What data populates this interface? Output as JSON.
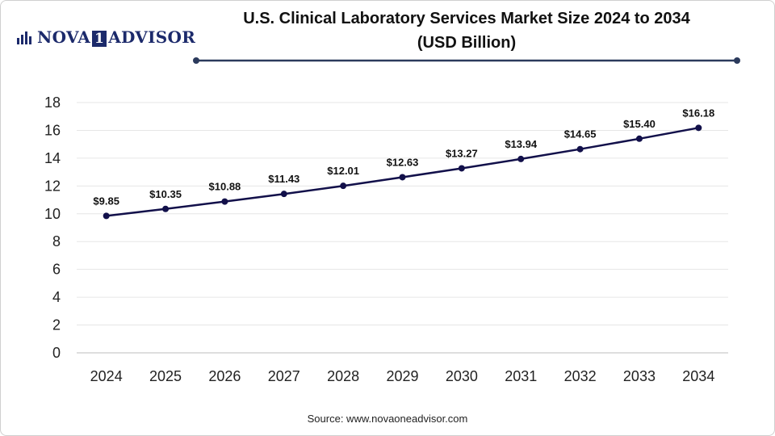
{
  "brand": {
    "name_left": "NOVA",
    "name_box": "1",
    "name_right": "ADVISOR"
  },
  "title_line1": "U.S. Clinical Laboratory Services Market Size 2024 to 2034",
  "title_line2": "(USD Billion)",
  "source": "Source: www.novaoneadvisor.com",
  "colors": {
    "line": "#12104a",
    "accent": "#2b3a5c",
    "grid": "#e6e6e6"
  },
  "chart_data": {
    "type": "line",
    "title": "U.S. Clinical Laboratory Services Market Size 2024 to 2034 (USD Billion)",
    "xlabel": "",
    "ylabel": "",
    "categories": [
      "2024",
      "2025",
      "2026",
      "2027",
      "2028",
      "2029",
      "2030",
      "2031",
      "2032",
      "2033",
      "2034"
    ],
    "values": [
      9.85,
      10.35,
      10.88,
      11.43,
      12.01,
      12.63,
      13.27,
      13.94,
      14.65,
      15.4,
      16.18
    ],
    "data_labels": [
      "$9.85",
      "$10.35",
      "$10.88",
      "$11.43",
      "$12.01",
      "$12.63",
      "$13.27",
      "$13.94",
      "$14.65",
      "$15.40",
      "$16.18"
    ],
    "ylim": [
      0,
      18
    ],
    "yticks": [
      0,
      2,
      4,
      6,
      8,
      10,
      12,
      14,
      16,
      18
    ],
    "grid": true,
    "legend": "none"
  }
}
